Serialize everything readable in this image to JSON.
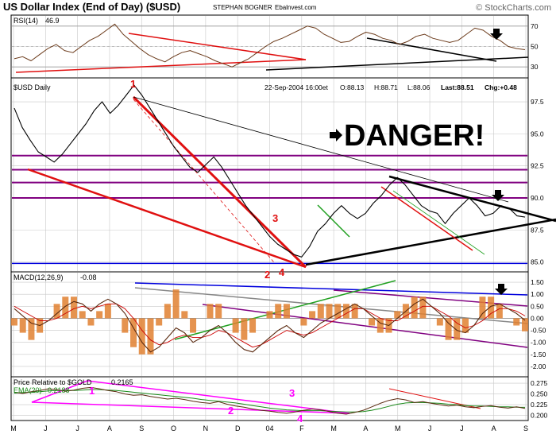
{
  "header": {
    "title": "US Dollar Index (End of Day) ($USD)",
    "author": "STEPHAN BOGNER",
    "site": "Ebalnvest.com",
    "copyright": "© StockCharts.com"
  },
  "annotations": {
    "danger_text": "DANGER!",
    "danger_arrow_icon": "right-arrow-icon",
    "wave_labels": [
      "1",
      "2",
      "3",
      "4"
    ]
  },
  "colors": {
    "price_line": "#000000",
    "rsi_line": "#6b3a1a",
    "macd_line": "#5a2a10",
    "macd_signal": "#cc0000",
    "macd_hist": "#e08030",
    "trend_red": "#e01010",
    "trend_black": "#000000",
    "trend_purple": "#800080",
    "trend_blue": "#0000dd",
    "trend_green": "#20a020",
    "trend_magenta": "#ff00ff",
    "trend_gray": "#888888",
    "grid": "#c8c8c8",
    "panel_bg": "#ffffff"
  },
  "chart_data": [
    {
      "type": "line",
      "panel": "rsi",
      "label": "RSI(14)",
      "last_value": "46.9",
      "y_ticks": [
        "70",
        "50",
        "30"
      ],
      "ylim": [
        20,
        80
      ],
      "series": [
        {
          "name": "RSI(14)",
          "values": [
            38,
            40,
            36,
            42,
            48,
            52,
            46,
            44,
            50,
            56,
            60,
            66,
            72,
            62,
            55,
            48,
            42,
            38,
            35,
            40,
            44,
            46,
            43,
            40,
            36,
            33,
            30,
            34,
            38,
            44,
            50,
            55,
            58,
            62,
            66,
            70,
            68,
            62,
            58,
            54,
            55,
            60,
            64,
            62,
            58,
            56,
            52,
            55,
            60,
            62,
            58,
            56,
            54,
            56,
            62,
            68,
            66,
            60,
            56,
            50,
            48,
            46.9
          ]
        }
      ]
    },
    {
      "type": "line",
      "panel": "price",
      "label": "$USD Daily",
      "info": {
        "date": "22-Sep-2004 16:00et",
        "open": "O:88.13",
        "high": "H:88.71",
        "low": "L:88.06",
        "last": "Last:88.51",
        "change": "Chg:+0.48"
      },
      "y_ticks": [
        "97.5",
        "95.0",
        "92.5",
        "90.0",
        "87.5",
        "85.0"
      ],
      "ylim": [
        84.3,
        99.3
      ],
      "series": [
        {
          "name": "$USD",
          "values": [
            97.0,
            95.5,
            94.5,
            93.6,
            93.2,
            92.8,
            93.4,
            94.2,
            95.0,
            95.8,
            96.8,
            97.5,
            96.6,
            97.2,
            98.0,
            98.8,
            98.0,
            97.0,
            96.0,
            95.0,
            94.0,
            93.2,
            92.4,
            92.0,
            92.6,
            93.2,
            92.4,
            91.4,
            90.4,
            89.4,
            88.6,
            87.8,
            87.0,
            86.4,
            86.0,
            85.6,
            85.4,
            86.2,
            87.4,
            88.0,
            88.8,
            89.4,
            88.8,
            88.4,
            88.8,
            89.6,
            90.2,
            91.0,
            91.6,
            91.0,
            90.2,
            89.4,
            89.0,
            88.8,
            88.0,
            88.8,
            89.4,
            90.0,
            89.4,
            88.6,
            88.8,
            89.4,
            89.2,
            88.6,
            88.51
          ]
        }
      ],
      "x_labels": [
        "M",
        "J",
        "J",
        "A",
        "S",
        "O",
        "N",
        "D",
        "04",
        "F",
        "M",
        "A",
        "M",
        "J",
        "J",
        "A",
        "S"
      ]
    },
    {
      "type": "line",
      "panel": "macd",
      "label": "MACD(12,26,9)",
      "last_value": "-0.08",
      "y_ticks": [
        "1.50",
        "1.00",
        "0.50",
        "0.00",
        "-0.50",
        "-1.00",
        "-1.50",
        "-2.00"
      ],
      "ylim": [
        -2.4,
        1.9
      ],
      "series": [
        {
          "name": "MACD",
          "values": [
            0.4,
            0.1,
            -0.2,
            -0.3,
            -0.1,
            0.2,
            0.5,
            0.7,
            0.6,
            0.3,
            0.6,
            0.8,
            0.6,
            0.2,
            -0.4,
            -1.0,
            -1.4,
            -1.2,
            -0.8,
            -0.4,
            -0.6,
            -1.0,
            -0.8,
            -0.5,
            -0.3,
            -0.6,
            -1.0,
            -1.3,
            -1.4,
            -1.1,
            -0.8,
            -0.5,
            -0.3,
            -0.6,
            -0.8,
            -0.5,
            -0.2,
            0.0,
            0.2,
            0.4,
            0.6,
            0.4,
            0.1,
            -0.2,
            -0.3,
            0.0,
            0.3,
            0.6,
            0.8,
            0.5,
            0.2,
            -0.2,
            -0.5,
            -0.6,
            -0.3,
            0.2,
            0.5,
            0.6,
            0.4,
            0.2,
            -0.08
          ]
        },
        {
          "name": "Signal",
          "values": [
            0.5,
            0.3,
            0.1,
            -0.1,
            -0.1,
            0.0,
            0.2,
            0.4,
            0.5,
            0.4,
            0.5,
            0.6,
            0.6,
            0.4,
            0.0,
            -0.5,
            -0.9,
            -1.1,
            -1.0,
            -0.8,
            -0.7,
            -0.8,
            -0.8,
            -0.7,
            -0.5,
            -0.6,
            -0.8,
            -1.0,
            -1.2,
            -1.1,
            -0.9,
            -0.7,
            -0.5,
            -0.6,
            -0.7,
            -0.6,
            -0.4,
            -0.2,
            0.0,
            0.2,
            0.4,
            0.4,
            0.2,
            0.0,
            -0.1,
            -0.1,
            0.1,
            0.3,
            0.5,
            0.5,
            0.3,
            0.1,
            -0.2,
            -0.4,
            -0.3,
            -0.1,
            0.2,
            0.4,
            0.4,
            0.3,
            0.1
          ]
        }
      ]
    },
    {
      "type": "line",
      "panel": "relative",
      "label": "Price Relative to $GOLD",
      "last_value": "0.2165",
      "ema_label": "EMA(20)",
      "ema_value": "0.2188",
      "y_ticks": [
        "0.275",
        "0.250",
        "0.225",
        "0.200"
      ],
      "ylim": [
        0.19,
        0.288
      ],
      "series": [
        {
          "name": "Price Relative to $GOLD",
          "values": [
            0.254,
            0.251,
            0.255,
            0.258,
            0.262,
            0.26,
            0.256,
            0.259,
            0.263,
            0.265,
            0.262,
            0.258,
            0.255,
            0.25,
            0.247,
            0.248,
            0.244,
            0.241,
            0.238,
            0.24,
            0.237,
            0.233,
            0.23,
            0.228,
            0.232,
            0.226,
            0.222,
            0.219,
            0.215,
            0.212,
            0.21,
            0.207,
            0.205,
            0.208,
            0.212,
            0.215,
            0.213,
            0.209,
            0.205,
            0.203,
            0.207,
            0.212,
            0.22,
            0.228,
            0.235,
            0.239,
            0.236,
            0.23,
            0.232,
            0.228,
            0.225,
            0.222,
            0.224,
            0.22,
            0.218,
            0.221,
            0.223,
            0.219,
            0.217,
            0.22,
            0.2165
          ]
        },
        {
          "name": "EMA(20)",
          "values": [
            0.252,
            0.253,
            0.254,
            0.255,
            0.257,
            0.258,
            0.258,
            0.258,
            0.259,
            0.26,
            0.26,
            0.259,
            0.258,
            0.256,
            0.254,
            0.252,
            0.25,
            0.248,
            0.246,
            0.244,
            0.242,
            0.24,
            0.237,
            0.235,
            0.233,
            0.231,
            0.229,
            0.226,
            0.223,
            0.22,
            0.217,
            0.215,
            0.213,
            0.212,
            0.211,
            0.211,
            0.211,
            0.21,
            0.209,
            0.208,
            0.208,
            0.209,
            0.212,
            0.216,
            0.221,
            0.226,
            0.229,
            0.23,
            0.23,
            0.229,
            0.228,
            0.226,
            0.225,
            0.223,
            0.222,
            0.222,
            0.221,
            0.22,
            0.22,
            0.219,
            0.2188
          ]
        }
      ]
    }
  ]
}
